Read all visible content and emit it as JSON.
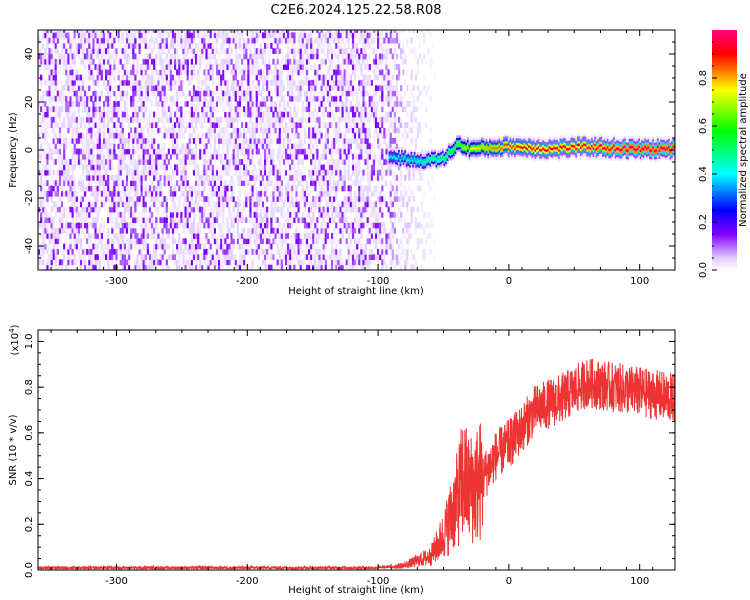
{
  "title": "C2E6.2024.125.22.58.R08",
  "chart_data": [
    {
      "type": "heatmap",
      "xlabel": "Height of straight line (km)",
      "ylabel": "Frequency (Hz)",
      "xlim": [
        -360,
        127
      ],
      "ylim": [
        -50,
        50
      ],
      "xticks": [
        -300,
        -200,
        -100,
        0,
        100
      ],
      "yticks": [
        -40,
        -20,
        0,
        20,
        40
      ],
      "colorbar": {
        "label": "Normalized spectral amplitude",
        "range": [
          0,
          1
        ],
        "ticks": [
          0.0,
          0.2,
          0.4,
          0.6,
          0.8
        ],
        "colormap": [
          "#ffffff",
          "#e0ccff",
          "#8000ff",
          "#0000ff",
          "#00ffff",
          "#00ff00",
          "#ffff00",
          "#ff0000",
          "#ff0080"
        ]
      },
      "noise_region": {
        "x_range": [
          -360,
          -68
        ],
        "amplitude": [
          0.0,
          0.3
        ]
      },
      "signal_track": [
        {
          "x": -92,
          "y": -3,
          "amplitude": 0.5
        },
        {
          "x": -70,
          "y": -5,
          "amplitude": 0.55
        },
        {
          "x": -50,
          "y": -4,
          "amplitude": 0.6
        },
        {
          "x": -40,
          "y": 2,
          "amplitude": 0.65
        },
        {
          "x": -30,
          "y": 0,
          "amplitude": 0.75
        },
        {
          "x": 0,
          "y": 1,
          "amplitude": 0.85
        },
        {
          "x": 30,
          "y": 0,
          "amplitude": 0.9
        },
        {
          "x": 60,
          "y": 1,
          "amplitude": 0.9
        },
        {
          "x": 90,
          "y": 0,
          "amplitude": 0.95
        },
        {
          "x": 127,
          "y": 0,
          "amplitude": 0.95
        }
      ]
    },
    {
      "type": "line",
      "xlabel": "Height of straight line (km)",
      "ylabel": "SNR (10 * v/v)",
      "y_multiplier": "(x10",
      "y_exponent": "4",
      "xlim": [
        -360,
        127
      ],
      "ylim": [
        0,
        1.05
      ],
      "xticks": [
        -300,
        -200,
        -100,
        0,
        100
      ],
      "yticks": [
        0.0,
        0.2,
        0.4,
        0.6,
        0.8,
        1.0
      ],
      "line_color": "#ee3333",
      "series_profile": {
        "x": [
          -360,
          -100,
          -80,
          -60,
          -50,
          -40,
          -35,
          -30,
          -20,
          -10,
          0,
          10,
          20,
          40,
          60,
          80,
          100,
          127
        ],
        "y": [
          0.01,
          0.01,
          0.02,
          0.06,
          0.15,
          0.3,
          0.4,
          0.35,
          0.4,
          0.5,
          0.55,
          0.62,
          0.7,
          0.75,
          0.82,
          0.8,
          0.78,
          0.75
        ]
      }
    }
  ]
}
